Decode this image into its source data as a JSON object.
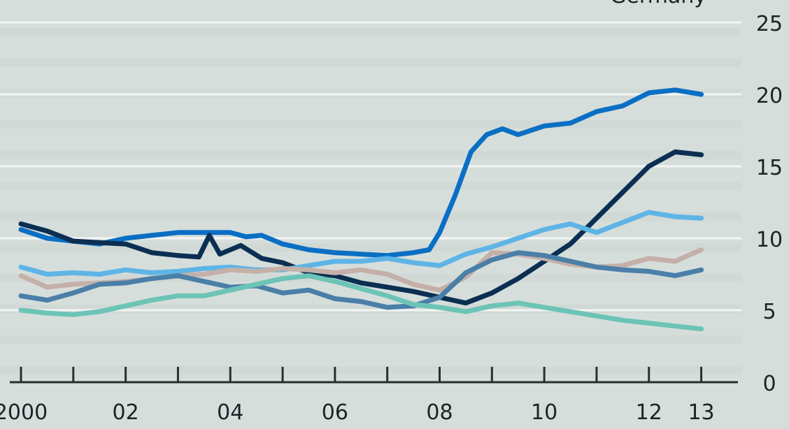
{
  "chart_data": {
    "type": "line",
    "top_label": "Germany",
    "x_tick_labels": [
      "2000",
      "02",
      "04",
      "06",
      "08",
      "10",
      "12",
      "13"
    ],
    "x_tick_positions": [
      2000,
      2002,
      2004,
      2006,
      2008,
      2010,
      2012,
      2013
    ],
    "xlim": [
      2000,
      2013.3
    ],
    "y_tick_labels": [
      "0",
      "5",
      "10",
      "15",
      "20",
      "25"
    ],
    "y_ticks": [
      0,
      5,
      10,
      15,
      20,
      25
    ],
    "ylim": [
      0,
      25
    ],
    "grid": true,
    "series": [
      {
        "color": "#0a6fc4",
        "x": [
          2000,
          2000.5,
          2001,
          2001.5,
          2002,
          2002.5,
          2003,
          2003.5,
          2004,
          2004.3,
          2004.6,
          2005,
          2005.5,
          2006,
          2006.5,
          2007,
          2007.5,
          2007.8,
          2008,
          2008.3,
          2008.6,
          2008.9,
          2009.2,
          2009.5,
          2010,
          2010.5,
          2011,
          2011.5,
          2012,
          2012.5,
          2013
        ],
        "y": [
          10.6,
          10.0,
          9.8,
          9.6,
          10.0,
          10.2,
          10.4,
          10.4,
          10.4,
          10.1,
          10.2,
          9.6,
          9.2,
          9.0,
          8.9,
          8.8,
          9.0,
          9.2,
          10.4,
          13.0,
          16.0,
          17.2,
          17.6,
          17.2,
          17.8,
          18.0,
          18.8,
          19.2,
          20.1,
          20.3,
          20.0
        ]
      },
      {
        "color": "#0b2f52",
        "x": [
          2000,
          2000.5,
          2001,
          2001.5,
          2002,
          2002.5,
          2003,
          2003.4,
          2003.6,
          2003.8,
          2004.2,
          2004.6,
          2005,
          2005.5,
          2006,
          2006.5,
          2007,
          2007.5,
          2008,
          2008.5,
          2009,
          2009.5,
          2010,
          2010.5,
          2011,
          2011.5,
          2012,
          2012.5,
          2013
        ],
        "y": [
          11.0,
          10.5,
          9.8,
          9.7,
          9.6,
          9.0,
          8.8,
          8.7,
          10.2,
          8.9,
          9.5,
          8.6,
          8.3,
          7.6,
          7.4,
          6.9,
          6.6,
          6.3,
          5.9,
          5.5,
          6.2,
          7.2,
          8.4,
          9.6,
          11.4,
          13.2,
          15.0,
          16.0,
          15.8
        ]
      },
      {
        "color": "#5fb4e6",
        "x": [
          2000,
          2000.5,
          2001,
          2001.5,
          2002,
          2002.5,
          2003,
          2003.5,
          2004,
          2004.5,
          2005,
          2005.5,
          2006,
          2006.5,
          2007,
          2007.5,
          2008,
          2008.5,
          2009,
          2009.5,
          2010,
          2010.5,
          2011,
          2011.5,
          2012,
          2012.5,
          2013
        ],
        "y": [
          8.0,
          7.5,
          7.6,
          7.5,
          7.8,
          7.6,
          7.7,
          7.9,
          8.0,
          7.8,
          7.8,
          8.1,
          8.4,
          8.4,
          8.6,
          8.3,
          8.1,
          8.9,
          9.4,
          10.0,
          10.6,
          11.0,
          10.4,
          11.1,
          11.8,
          11.5,
          11.4
        ]
      },
      {
        "color": "#c4b0a8",
        "x": [
          2000,
          2000.5,
          2001,
          2001.5,
          2002,
          2002.5,
          2003,
          2003.5,
          2004,
          2004.5,
          2005,
          2005.5,
          2006,
          2006.5,
          2007,
          2007.5,
          2008,
          2008.5,
          2009,
          2009.5,
          2010,
          2010.5,
          2011,
          2011.5,
          2012,
          2012.5,
          2013
        ],
        "y": [
          7.4,
          6.6,
          6.8,
          6.9,
          7.0,
          7.2,
          7.4,
          7.5,
          7.8,
          7.7,
          7.9,
          7.8,
          7.6,
          7.8,
          7.5,
          6.8,
          6.4,
          7.3,
          9.0,
          8.9,
          8.6,
          8.2,
          8.0,
          8.1,
          8.6,
          8.4,
          9.2
        ]
      },
      {
        "color": "#4a7fa8",
        "x": [
          2000,
          2000.5,
          2001,
          2001.5,
          2002,
          2002.5,
          2003,
          2003.5,
          2004,
          2004.5,
          2005,
          2005.5,
          2006,
          2006.5,
          2007,
          2007.5,
          2008,
          2008.5,
          2009,
          2009.5,
          2010,
          2010.5,
          2011,
          2011.5,
          2012,
          2012.5,
          2013
        ],
        "y": [
          6.0,
          5.7,
          6.2,
          6.8,
          6.9,
          7.2,
          7.4,
          7.0,
          6.6,
          6.7,
          6.2,
          6.4,
          5.8,
          5.6,
          5.2,
          5.3,
          5.9,
          7.6,
          8.5,
          9.0,
          8.8,
          8.4,
          8.0,
          7.8,
          7.7,
          7.4,
          7.8
        ]
      },
      {
        "color": "#6cc4b6",
        "x": [
          2000,
          2000.5,
          2001,
          2001.5,
          2002,
          2002.5,
          2003,
          2003.5,
          2004,
          2004.5,
          2005,
          2005.5,
          2006,
          2006.5,
          2007,
          2007.5,
          2008,
          2008.5,
          2009,
          2009.5,
          2010,
          2010.5,
          2011,
          2011.5,
          2012,
          2012.5,
          2013
        ],
        "y": [
          5.0,
          4.8,
          4.7,
          4.9,
          5.3,
          5.7,
          6.0,
          6.0,
          6.4,
          6.8,
          7.2,
          7.4,
          7.0,
          6.5,
          6.0,
          5.4,
          5.2,
          4.9,
          5.3,
          5.5,
          5.2,
          4.9,
          4.6,
          4.3,
          4.1,
          3.9,
          3.7
        ]
      }
    ]
  }
}
